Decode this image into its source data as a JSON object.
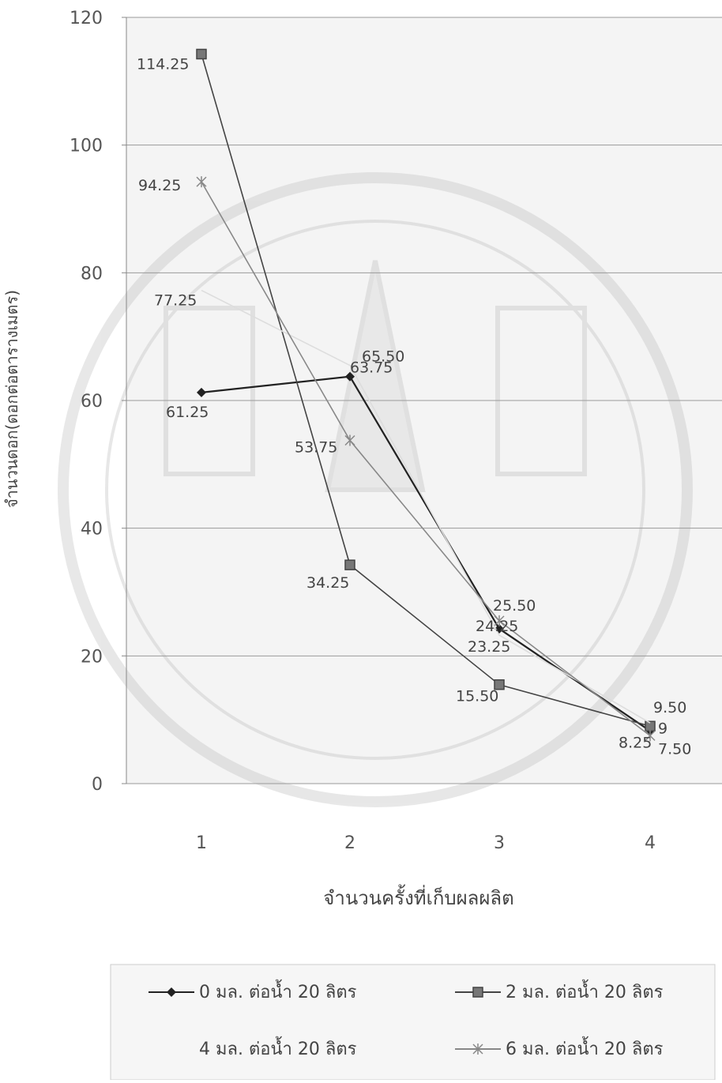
{
  "chart_data": {
    "type": "line",
    "title": "",
    "xlabel": "จำนวนครั้งที่เก็บผลผลิต",
    "ylabel": "จำนวนดอก(ดอกต่อตารางเมตร)",
    "categories": [
      "1",
      "2",
      "3",
      "4"
    ],
    "ylim": [
      0,
      120
    ],
    "yticks": [
      0,
      20,
      40,
      60,
      80,
      100,
      120
    ],
    "grid": true,
    "legend_position": "bottom",
    "series": [
      {
        "name": "0 มล. ต่อน้ำ 20 ลิตร",
        "values": [
          61.25,
          63.75,
          24.25,
          8.25
        ],
        "labels": [
          "61.25",
          "63.75",
          "24.25",
          "8.25"
        ],
        "marker": "diamond",
        "color": "#222222"
      },
      {
        "name": "2 มล. ต่อน้ำ 20 ลิตร",
        "values": [
          114.25,
          34.25,
          15.5,
          9
        ],
        "labels": [
          "114.25",
          "34.25",
          "15.50",
          "9"
        ],
        "marker": "square",
        "color": "#444444"
      },
      {
        "name": "4 มล. ต่อน้ำ 20 ลิตร",
        "values": [
          77.25,
          65.5,
          23.25,
          9.5
        ],
        "labels": [
          "77.25",
          "65.50",
          "23.25",
          "9.50"
        ],
        "marker": "none",
        "color": "#dddddd"
      },
      {
        "name": "6 มล. ต่อน้ำ 20 ลิตร",
        "values": [
          94.25,
          53.75,
          25.5,
          7.5
        ],
        "labels": [
          "94.25",
          "53.75",
          "25.50",
          "7.50"
        ],
        "marker": "star",
        "color": "#888888"
      }
    ]
  }
}
